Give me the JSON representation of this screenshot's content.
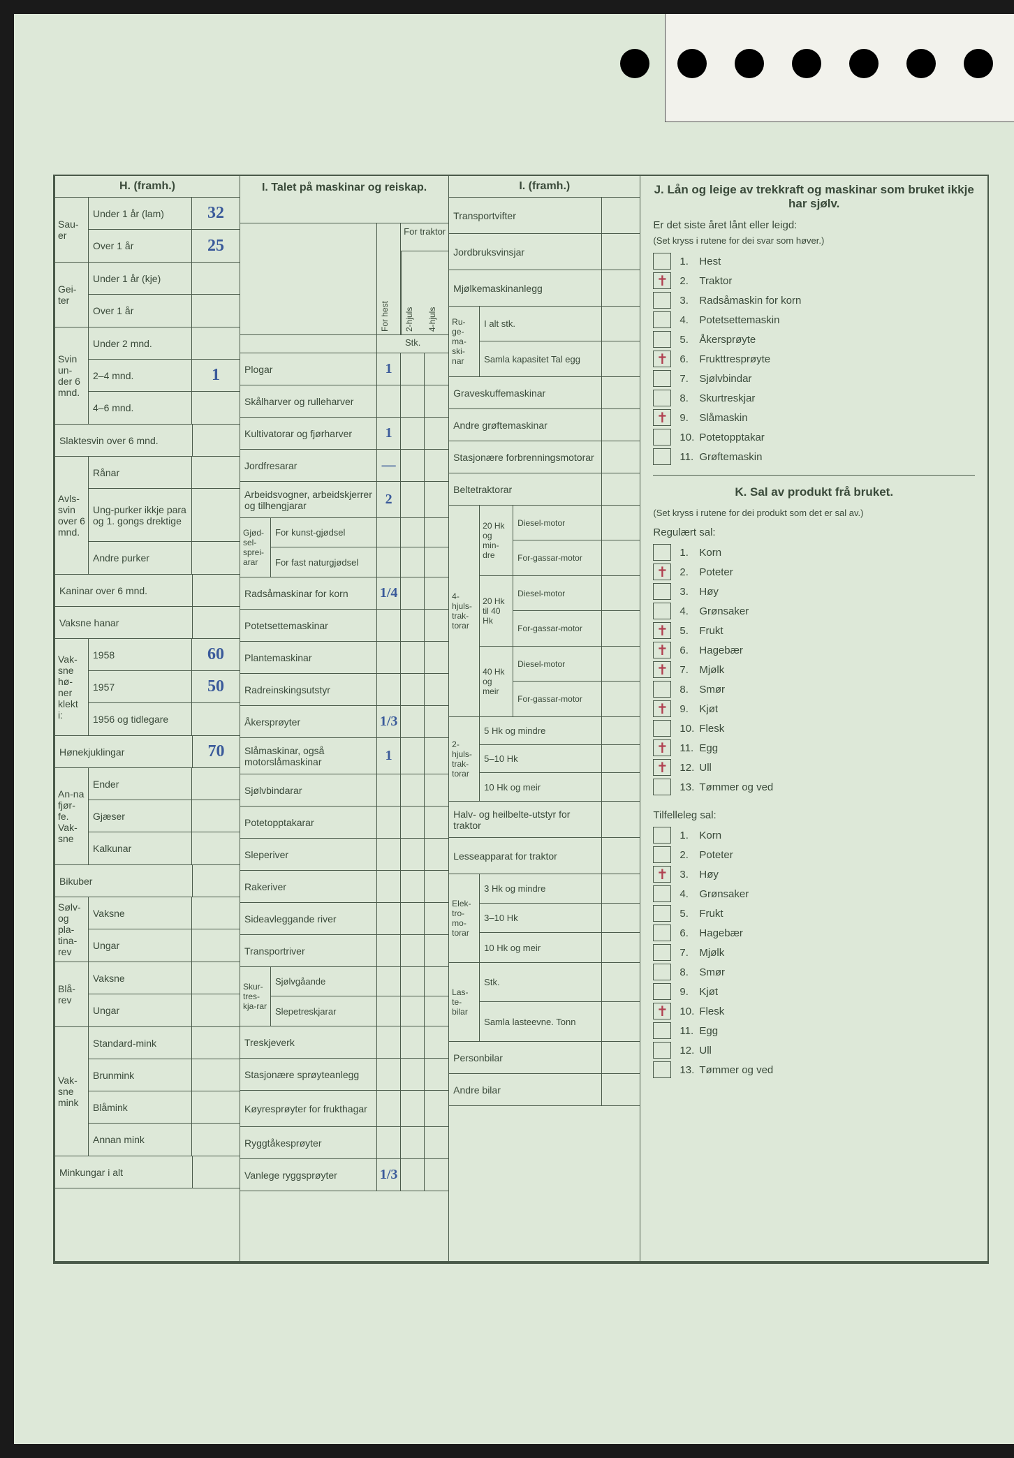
{
  "colors": {
    "page_bg": "#dde8d8",
    "form_line": "#4a5a4a",
    "text": "#3a4a3a",
    "handwriting": "#3a5a9a",
    "red_mark": "#b04050"
  },
  "H": {
    "title": "H. (framh.)",
    "groups": [
      {
        "side": "Sau-er",
        "rows": [
          {
            "label": "Under 1 år (lam)",
            "value": "32"
          },
          {
            "label": "Over 1 år",
            "value": "25"
          }
        ]
      },
      {
        "side": "Gei-ter",
        "rows": [
          {
            "label": "Under 1 år (kje)",
            "value": ""
          },
          {
            "label": "Over 1 år",
            "value": ""
          }
        ]
      },
      {
        "side": "Svin un-der 6 mnd.",
        "rows": [
          {
            "label": "Under 2 mnd.",
            "value": ""
          },
          {
            "label": "2–4 mnd.",
            "value": "1"
          },
          {
            "label": "4–6 mnd.",
            "value": ""
          }
        ]
      },
      {
        "side": "",
        "rows": [
          {
            "label": "Slaktesvin over 6 mnd.",
            "value": "",
            "span": true
          }
        ]
      },
      {
        "side": "Avls-svin over 6 mnd.",
        "rows": [
          {
            "label": "Rånar",
            "value": ""
          },
          {
            "label": "Ung-purker ikkje para og 1. gongs drektige",
            "value": ""
          },
          {
            "label": "Andre purker",
            "value": ""
          }
        ]
      },
      {
        "side": "",
        "rows": [
          {
            "label": "Kaninar over 6 mnd.",
            "value": "",
            "span": true
          }
        ]
      },
      {
        "side": "",
        "rows": [
          {
            "label": "Vaksne hanar",
            "value": "",
            "span": true
          }
        ]
      },
      {
        "side": "Vak-sne hø-ner klekt i:",
        "rows": [
          {
            "label": "1958",
            "value": "60"
          },
          {
            "label": "1957",
            "value": "50"
          },
          {
            "label": "1956 og tidlegare",
            "value": ""
          }
        ]
      },
      {
        "side": "",
        "rows": [
          {
            "label": "Hønekjuklingar",
            "value": "70",
            "span": true
          }
        ]
      },
      {
        "side": "An-na fjør-fe. Vak-sne",
        "rows": [
          {
            "label": "Ender",
            "value": ""
          },
          {
            "label": "Gjæser",
            "value": ""
          },
          {
            "label": "Kalkunar",
            "value": ""
          }
        ]
      },
      {
        "side": "",
        "rows": [
          {
            "label": "Bikuber",
            "value": "",
            "span": true
          }
        ]
      },
      {
        "side": "Sølv- og pla-tina-rev",
        "rows": [
          {
            "label": "Vaksne",
            "value": ""
          },
          {
            "label": "Ungar",
            "value": ""
          }
        ]
      },
      {
        "side": "Blå-rev",
        "rows": [
          {
            "label": "Vaksne",
            "value": ""
          },
          {
            "label": "Ungar",
            "value": ""
          }
        ]
      },
      {
        "side": "Vak-sne mink",
        "rows": [
          {
            "label": "Standard-mink",
            "value": ""
          },
          {
            "label": "Brunmink",
            "value": ""
          },
          {
            "label": "Blåmink",
            "value": ""
          },
          {
            "label": "Annan mink",
            "value": ""
          }
        ]
      },
      {
        "side": "",
        "rows": [
          {
            "label": "Minkungar i alt",
            "value": "",
            "span": true
          }
        ]
      }
    ]
  },
  "I": {
    "title": "I. Talet på maskinar og reiskap.",
    "traktor_head": "For traktor",
    "col_heads": {
      "c1": "For hest",
      "c2": "2-hjuls",
      "c3": "4-hjuls"
    },
    "stk": "Stk.",
    "rows": [
      {
        "label": "Plogar",
        "v1": "1"
      },
      {
        "label": "Skålharver og rulleharver"
      },
      {
        "label": "Kultivatorar og fjørharver",
        "v1": "1"
      },
      {
        "label": "Jordfresarar",
        "v1": "—"
      },
      {
        "label": "Arbeidsvogner, arbeidskjerrer og tilhengjarar",
        "v1": "2"
      },
      {
        "sub_side": "Gjød-sel-sprei-arar",
        "sub_rows": [
          "For kunst-gjødsel",
          "For fast naturgjødsel"
        ]
      },
      {
        "label": "Radsåmaskinar for korn",
        "v1": "1/4"
      },
      {
        "label": "Potetsettemaskinar"
      },
      {
        "label": "Plantemaskinar"
      },
      {
        "label": "Radreinskingsutstyr"
      },
      {
        "label": "Åkersprøyter",
        "v1": "1/3"
      },
      {
        "label": "Slåmaskinar, også motorslåmaskinar",
        "v1": "1"
      },
      {
        "label": "Sjølvbindarar"
      },
      {
        "label": "Potetopptakarar"
      },
      {
        "label": "Sleperiver"
      },
      {
        "label": "Rakeriver"
      },
      {
        "label": "Sideavleggande river"
      },
      {
        "label": "Transportriver"
      },
      {
        "sub_side": "Skur-tres-kja-rar",
        "sub_rows": [
          "Sjølvgåande",
          "Slepetreskjarar"
        ]
      },
      {
        "label": "Treskjeverk"
      },
      {
        "label": "Stasjonære sprøyteanlegg"
      },
      {
        "label": "Køyresprøyter for frukthagar"
      },
      {
        "label": "Ryggtåkesprøyter"
      },
      {
        "label": "Vanlege ryggsprøyter",
        "v1": "1/3"
      }
    ]
  },
  "I2": {
    "title": "I. (framh.)",
    "rows_top": [
      {
        "label": "Transportvifter"
      },
      {
        "label": "Jordbruksvinsjar"
      },
      {
        "label": "Mjølkemaskinanlegg"
      }
    ],
    "ruge": {
      "side": "Ru-ge-ma-ski-nar",
      "rows": [
        "I alt stk.",
        "Samla kapasitet Tal egg"
      ]
    },
    "rows_mid": [
      {
        "label": "Graveskuffemaskinar"
      },
      {
        "label": "Andre grøftemaskinar"
      },
      {
        "label": "Stasjonære forbrenningsmotorar"
      },
      {
        "label": "Beltetraktorar"
      }
    ],
    "traktor4": {
      "side": "4-hjuls-trak-torar",
      "groups": [
        {
          "mid": "20 Hk og min-dre",
          "rows": [
            "Diesel-motor",
            "For-gassar-motor"
          ]
        },
        {
          "mid": "20 Hk til 40 Hk",
          "rows": [
            "Diesel-motor",
            "For-gassar-motor"
          ]
        },
        {
          "mid": "40 Hk og meir",
          "rows": [
            "Diesel-motor",
            "For-gassar-motor"
          ]
        }
      ]
    },
    "traktor2": {
      "side": "2-hjuls-trak-torar",
      "rows": [
        "5 Hk og mindre",
        "5–10 Hk",
        "10 Hk og meir"
      ]
    },
    "rows_bot": [
      {
        "label": "Halv- og heilbelte-utstyr for traktor"
      },
      {
        "label": "Lesseapparat for traktor"
      }
    ],
    "elektro": {
      "side": "Elek-tro-mo-torar",
      "rows": [
        "3 Hk og mindre",
        "3–10 Hk",
        "10 Hk og meir"
      ]
    },
    "laste": {
      "side": "Las-te-bilar",
      "rows": [
        "Stk.",
        "Samla lasteevne. Tonn"
      ]
    },
    "rows_end": [
      {
        "label": "Personbilar"
      },
      {
        "label": "Andre bilar"
      }
    ]
  },
  "J": {
    "title": "J. Lån og leige av trekkraft og maskinar som bruket ikkje har sjølv.",
    "sub": "Er det siste året lånt eller leigd:",
    "hint": "(Set kryss i rutene for dei svar som høver.)",
    "items": [
      {
        "n": "1.",
        "label": "Hest",
        "mark": ""
      },
      {
        "n": "2.",
        "label": "Traktor",
        "mark": "✝"
      },
      {
        "n": "3.",
        "label": "Radsåmaskin for korn",
        "mark": ""
      },
      {
        "n": "4.",
        "label": "Potetsettemaskin",
        "mark": ""
      },
      {
        "n": "5.",
        "label": "Åkersprøyte",
        "mark": ""
      },
      {
        "n": "6.",
        "label": "Frukttresprøyte",
        "mark": "✝"
      },
      {
        "n": "7.",
        "label": "Sjølvbindar",
        "mark": ""
      },
      {
        "n": "8.",
        "label": "Skurtreskjar",
        "mark": ""
      },
      {
        "n": "9.",
        "label": "Slåmaskin",
        "mark": "✝"
      },
      {
        "n": "10.",
        "label": "Potetopptakar",
        "mark": ""
      },
      {
        "n": "11.",
        "label": "Grøftemaskin",
        "mark": ""
      }
    ]
  },
  "K": {
    "title": "K. Sal av produkt frå bruket.",
    "hint": "(Set kryss i rutene for dei produkt som det er sal av.)",
    "reg_head": "Regulært sal:",
    "reg_items": [
      {
        "n": "1.",
        "label": "Korn",
        "mark": ""
      },
      {
        "n": "2.",
        "label": "Poteter",
        "mark": "✝"
      },
      {
        "n": "3.",
        "label": "Høy",
        "mark": ""
      },
      {
        "n": "4.",
        "label": "Grønsaker",
        "mark": ""
      },
      {
        "n": "5.",
        "label": "Frukt",
        "mark": "✝"
      },
      {
        "n": "6.",
        "label": "Hagebær",
        "mark": "✝"
      },
      {
        "n": "7.",
        "label": "Mjølk",
        "mark": "✝"
      },
      {
        "n": "8.",
        "label": "Smør",
        "mark": ""
      },
      {
        "n": "9.",
        "label": "Kjøt",
        "mark": "✝"
      },
      {
        "n": "10.",
        "label": "Flesk",
        "mark": ""
      },
      {
        "n": "11.",
        "label": "Egg",
        "mark": "✝"
      },
      {
        "n": "12.",
        "label": "Ull",
        "mark": "✝"
      },
      {
        "n": "13.",
        "label": "Tømmer og ved",
        "mark": ""
      }
    ],
    "til_head": "Tilfelleleg sal:",
    "til_items": [
      {
        "n": "1.",
        "label": "Korn",
        "mark": ""
      },
      {
        "n": "2.",
        "label": "Poteter",
        "mark": ""
      },
      {
        "n": "3.",
        "label": "Høy",
        "mark": "✝"
      },
      {
        "n": "4.",
        "label": "Grønsaker",
        "mark": ""
      },
      {
        "n": "5.",
        "label": "Frukt",
        "mark": ""
      },
      {
        "n": "6.",
        "label": "Hagebær",
        "mark": ""
      },
      {
        "n": "7.",
        "label": "Mjølk",
        "mark": ""
      },
      {
        "n": "8.",
        "label": "Smør",
        "mark": ""
      },
      {
        "n": "9.",
        "label": "Kjøt",
        "mark": ""
      },
      {
        "n": "10.",
        "label": "Flesk",
        "mark": "✝"
      },
      {
        "n": "11.",
        "label": "Egg",
        "mark": ""
      },
      {
        "n": "12.",
        "label": "Ull",
        "mark": ""
      },
      {
        "n": "13.",
        "label": "Tømmer og ved",
        "mark": ""
      }
    ]
  }
}
